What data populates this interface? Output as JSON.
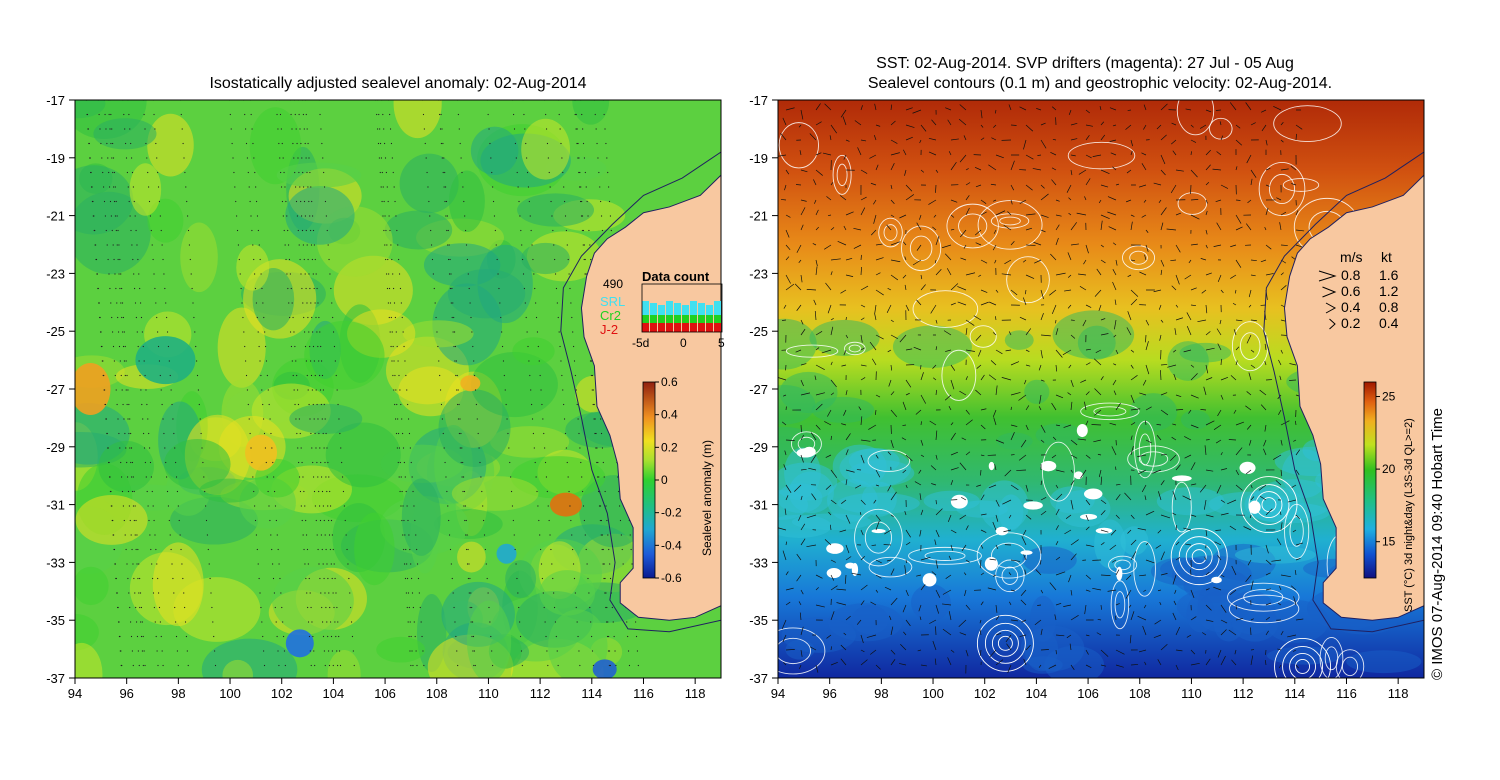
{
  "left_panel": {
    "title": "Isostatically adjusted sealevel anomaly: 02-Aug-2014",
    "x_ticks": [
      "94",
      "96",
      "98",
      "100",
      "102",
      "104",
      "106",
      "108",
      "110",
      "112",
      "114",
      "116",
      "118"
    ],
    "y_ticks": [
      "-17",
      "-19",
      "-21",
      "-23",
      "-25",
      "-27",
      "-29",
      "-31",
      "-33",
      "-35",
      "-37"
    ],
    "data_count": {
      "title": "Data count",
      "total": "490",
      "sat_labels": [
        "SRL",
        "Cr2",
        "J-2"
      ],
      "sat_colors": [
        "#40e0f0",
        "#20d020",
        "#e01010"
      ],
      "axis_labels": [
        "-5d",
        "0",
        "5"
      ]
    },
    "colorbar": {
      "label": "Sealevel anomaly (m)",
      "ticks": [
        "0.6",
        "0.4",
        "0.2",
        "0",
        "-0.2",
        "-0.4",
        "-0.6"
      ],
      "range": [
        -0.6,
        0.6
      ]
    }
  },
  "right_panel": {
    "title_line1": "SST: 02-Aug-2014. SVP drifters (magenta): 27 Jul - 05 Aug",
    "title_line2": "Sealevel contours (0.1 m) and geostrophic velocity: 02-Aug-2014.",
    "x_ticks": [
      "94",
      "96",
      "98",
      "100",
      "102",
      "104",
      "106",
      "108",
      "110",
      "112",
      "114",
      "116",
      "118"
    ],
    "y_ticks": [
      "-17",
      "-19",
      "-21",
      "-23",
      "-25",
      "-27",
      "-29",
      "-31",
      "-33",
      "-35",
      "-37"
    ],
    "velocity_legend": {
      "header_ms": "m/s",
      "header_kt": "kt",
      "rows": [
        {
          "ms": "0.8",
          "kt": "1.6"
        },
        {
          "ms": "0.6",
          "kt": "1.2"
        },
        {
          "ms": "0.4",
          "kt": "0.8"
        },
        {
          "ms": "0.2",
          "kt": "0.4"
        }
      ]
    },
    "colorbar": {
      "label": "SST (°C) 3d night&day (L3S-3d QL>=2)",
      "ticks": [
        "25",
        "20",
        "15"
      ],
      "range": [
        12.5,
        26
      ]
    },
    "credit": "© IMOS 07-Aug-2014 09:40 Hobart Time"
  },
  "colors": {
    "land": "#f8c8a0",
    "coast": "#202060"
  }
}
